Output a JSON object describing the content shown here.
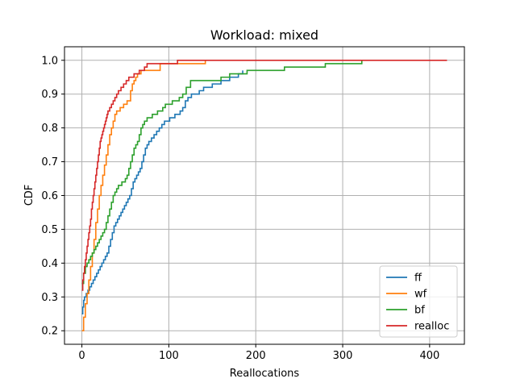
{
  "chart_data": {
    "type": "line",
    "title": "Workload: mixed",
    "xlabel": "Reallocations",
    "ylabel": "CDF",
    "xlim": [
      -20,
      440
    ],
    "ylim": [
      0.16,
      1.04
    ],
    "xticks": [
      0,
      100,
      200,
      300,
      400
    ],
    "yticks": [
      0.2,
      0.3,
      0.4,
      0.5,
      0.6,
      0.7,
      0.8,
      0.9,
      1.0
    ],
    "xtick_labels": [
      "0",
      "100",
      "200",
      "300",
      "400"
    ],
    "ytick_labels": [
      "0.2",
      "0.3",
      "0.4",
      "0.5",
      "0.6",
      "0.7",
      "0.8",
      "0.9",
      "1.0"
    ],
    "grid": true,
    "legend_position": "bottom-right",
    "series": [
      {
        "name": "ff",
        "color": "#1f77b4",
        "x": [
          0,
          1,
          2,
          3,
          5,
          7,
          9,
          11,
          13,
          15,
          17,
          19,
          21,
          23,
          25,
          27,
          29,
          31,
          33,
          35,
          37,
          39,
          41,
          43,
          45,
          47,
          49,
          51,
          53,
          55,
          57,
          59,
          61,
          63,
          65,
          67,
          69,
          71,
          73,
          75,
          77,
          80,
          83,
          86,
          89,
          92,
          95,
          98,
          101,
          104,
          107,
          110,
          113,
          116,
          119,
          122,
          126,
          130,
          135,
          140,
          150,
          160,
          170,
          180,
          185
        ],
        "y": [
          0.25,
          0.27,
          0.29,
          0.3,
          0.31,
          0.32,
          0.33,
          0.34,
          0.35,
          0.36,
          0.37,
          0.38,
          0.39,
          0.4,
          0.41,
          0.42,
          0.43,
          0.45,
          0.47,
          0.49,
          0.51,
          0.52,
          0.53,
          0.54,
          0.55,
          0.56,
          0.57,
          0.58,
          0.59,
          0.6,
          0.62,
          0.64,
          0.65,
          0.66,
          0.67,
          0.68,
          0.7,
          0.72,
          0.74,
          0.75,
          0.76,
          0.77,
          0.78,
          0.79,
          0.8,
          0.81,
          0.82,
          0.82,
          0.83,
          0.83,
          0.84,
          0.84,
          0.85,
          0.86,
          0.88,
          0.89,
          0.9,
          0.9,
          0.91,
          0.92,
          0.93,
          0.94,
          0.95,
          0.96,
          0.97
        ]
      },
      {
        "name": "wf",
        "color": "#ff7f0e",
        "x": [
          0,
          2,
          4,
          6,
          8,
          10,
          12,
          14,
          16,
          18,
          20,
          22,
          24,
          26,
          28,
          30,
          32,
          34,
          36,
          38,
          40,
          42,
          44,
          46,
          48,
          50,
          52,
          54,
          56,
          58,
          60,
          62,
          64,
          66,
          68,
          70,
          72,
          75,
          80,
          85,
          90,
          100,
          110,
          120,
          130,
          140,
          142
        ],
        "y": [
          0.2,
          0.24,
          0.28,
          0.31,
          0.35,
          0.39,
          0.43,
          0.47,
          0.52,
          0.56,
          0.6,
          0.63,
          0.66,
          0.69,
          0.72,
          0.75,
          0.78,
          0.8,
          0.82,
          0.84,
          0.85,
          0.85,
          0.86,
          0.86,
          0.87,
          0.87,
          0.88,
          0.88,
          0.91,
          0.93,
          0.94,
          0.95,
          0.96,
          0.96,
          0.97,
          0.97,
          0.97,
          0.97,
          0.97,
          0.97,
          0.99,
          0.99,
          0.99,
          0.99,
          0.99,
          0.99,
          1.0
        ]
      },
      {
        "name": "bf",
        "color": "#2ca02c",
        "x": [
          0,
          2,
          4,
          6,
          8,
          10,
          12,
          14,
          16,
          18,
          20,
          22,
          24,
          26,
          28,
          30,
          32,
          34,
          36,
          38,
          40,
          42,
          44,
          46,
          48,
          50,
          52,
          54,
          56,
          58,
          60,
          62,
          64,
          66,
          68,
          70,
          72,
          75,
          78,
          81,
          84,
          87,
          90,
          93,
          96,
          100,
          104,
          108,
          112,
          116,
          120,
          125,
          130,
          140,
          150,
          160,
          170,
          180,
          190,
          200,
          210,
          220,
          230,
          233,
          240,
          260,
          280,
          300,
          320,
          322
        ],
        "y": [
          0.34,
          0.37,
          0.39,
          0.4,
          0.41,
          0.42,
          0.43,
          0.44,
          0.45,
          0.46,
          0.47,
          0.48,
          0.49,
          0.5,
          0.52,
          0.54,
          0.56,
          0.58,
          0.6,
          0.61,
          0.62,
          0.63,
          0.63,
          0.64,
          0.64,
          0.65,
          0.66,
          0.68,
          0.7,
          0.72,
          0.74,
          0.75,
          0.76,
          0.78,
          0.8,
          0.81,
          0.82,
          0.83,
          0.83,
          0.84,
          0.84,
          0.85,
          0.85,
          0.86,
          0.87,
          0.87,
          0.88,
          0.88,
          0.89,
          0.9,
          0.92,
          0.94,
          0.94,
          0.94,
          0.94,
          0.95,
          0.96,
          0.96,
          0.97,
          0.97,
          0.97,
          0.97,
          0.97,
          0.98,
          0.98,
          0.98,
          0.99,
          0.99,
          0.99,
          1.0
        ]
      },
      {
        "name": "realloc",
        "color": "#d62728",
        "x": [
          0,
          1,
          2,
          3,
          4,
          5,
          6,
          7,
          8,
          9,
          10,
          11,
          12,
          13,
          14,
          15,
          16,
          17,
          18,
          19,
          20,
          21,
          22,
          23,
          24,
          25,
          26,
          27,
          28,
          29,
          30,
          32,
          34,
          36,
          38,
          40,
          42,
          45,
          48,
          51,
          54,
          57,
          60,
          63,
          66,
          69,
          72,
          75,
          80,
          90,
          100,
          110,
          130,
          160,
          200,
          250,
          300,
          350,
          400,
          420
        ],
        "y": [
          0.32,
          0.35,
          0.37,
          0.39,
          0.41,
          0.43,
          0.45,
          0.47,
          0.49,
          0.51,
          0.53,
          0.56,
          0.58,
          0.6,
          0.62,
          0.64,
          0.66,
          0.68,
          0.7,
          0.72,
          0.74,
          0.76,
          0.77,
          0.78,
          0.79,
          0.8,
          0.81,
          0.82,
          0.83,
          0.84,
          0.85,
          0.86,
          0.87,
          0.88,
          0.89,
          0.9,
          0.91,
          0.92,
          0.93,
          0.94,
          0.95,
          0.95,
          0.96,
          0.96,
          0.97,
          0.97,
          0.98,
          0.99,
          0.99,
          0.99,
          0.99,
          1.0,
          1.0,
          1.0,
          1.0,
          1.0,
          1.0,
          1.0,
          1.0,
          1.0
        ]
      }
    ]
  }
}
